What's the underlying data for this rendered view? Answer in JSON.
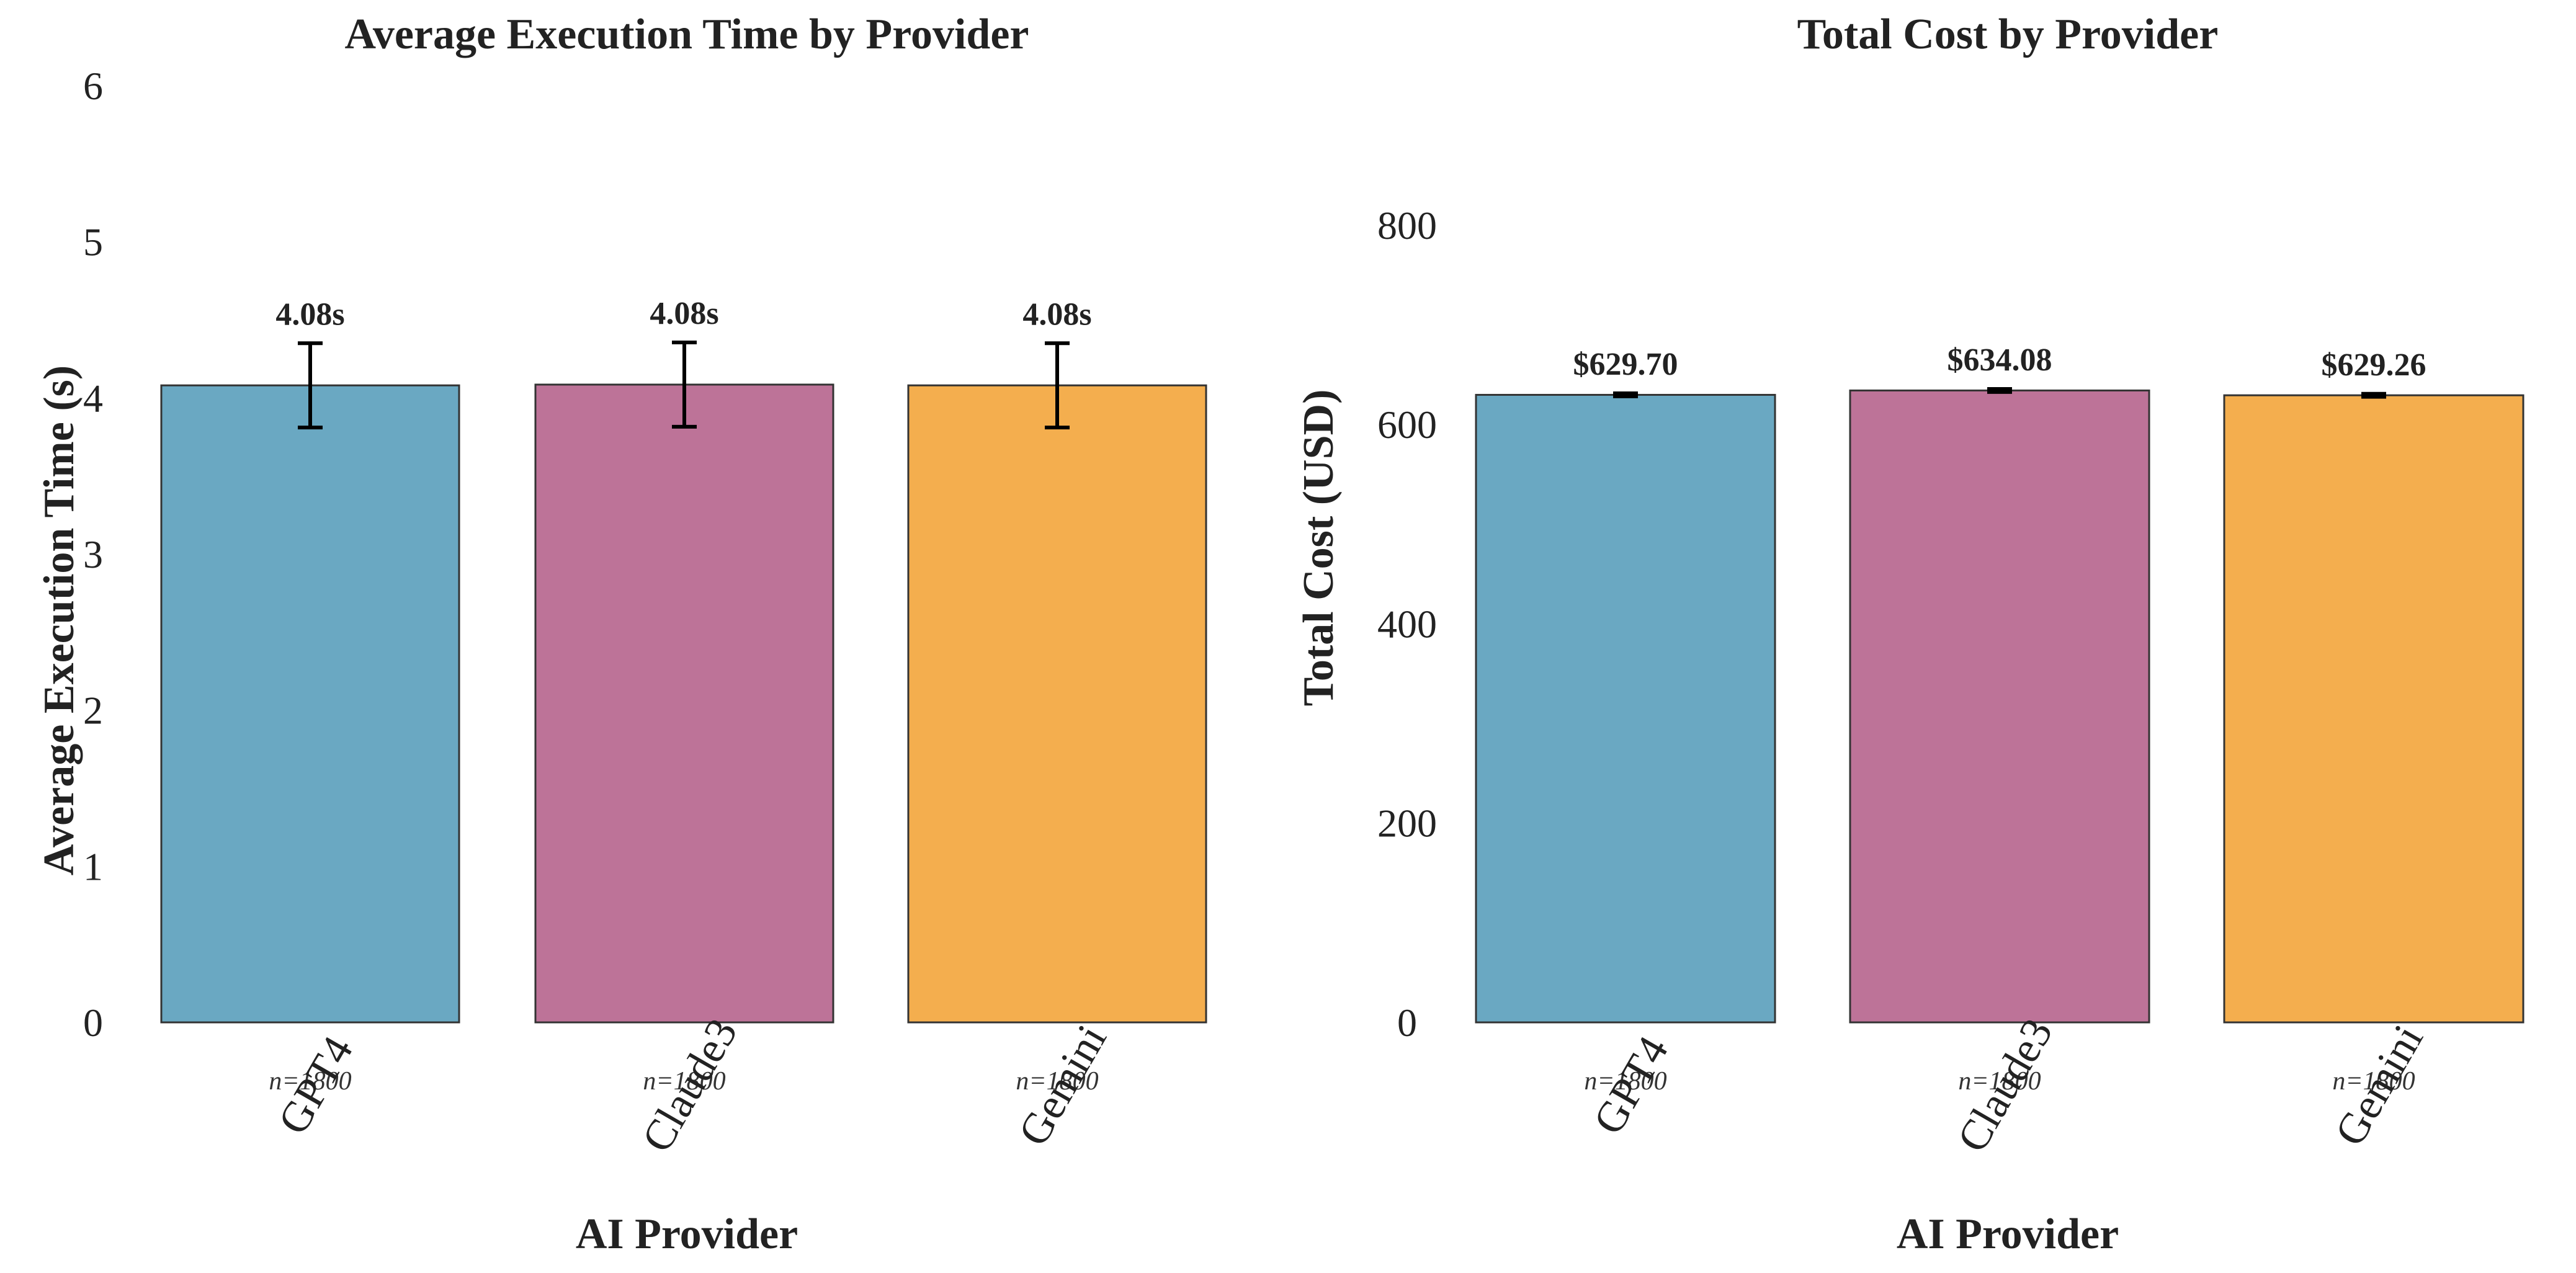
{
  "chart_data": [
    {
      "type": "bar",
      "title": "Average Execution Time by Provider",
      "xlabel": "AI Provider",
      "ylabel": "Average Execution Time (s)",
      "categories": [
        "GPT4",
        "Claude3",
        "Gemini"
      ],
      "values": [
        4.08,
        4.085,
        4.08
      ],
      "errors": [
        0.27,
        0.27,
        0.27
      ],
      "value_labels": [
        "4.08s",
        "4.08s",
        "4.08s"
      ],
      "n_labels": [
        "n=1800",
        "n=1800",
        "n=1800"
      ],
      "colors": [
        "#6aa8c2",
        "#bd7398",
        "#f4ae4e"
      ],
      "ylim": [
        0,
        6
      ],
      "yticks": [
        "0",
        "1",
        "2",
        "3",
        "4",
        "5",
        "6"
      ],
      "grid": false,
      "legend": "none"
    },
    {
      "type": "bar",
      "title": "Total Cost by Provider",
      "xlabel": "AI Provider",
      "ylabel": "Total Cost (USD)",
      "categories": [
        "GPT4",
        "Claude3",
        "Gemini"
      ],
      "values": [
        629.7,
        634.08,
        629.26
      ],
      "errors": [
        1.5,
        1.5,
        1.5
      ],
      "value_labels": [
        "$629.70",
        "$634.08",
        "$629.26"
      ],
      "n_labels": [
        "n=1800",
        "n=1800",
        "n=1800"
      ],
      "colors": [
        "#6aa8c2",
        "#bd7398",
        "#f4ae4e"
      ],
      "ylim": [
        0,
        940
      ],
      "yticks": [
        "0",
        "200",
        "400",
        "600",
        "800"
      ],
      "grid": false,
      "legend": "none"
    }
  ]
}
